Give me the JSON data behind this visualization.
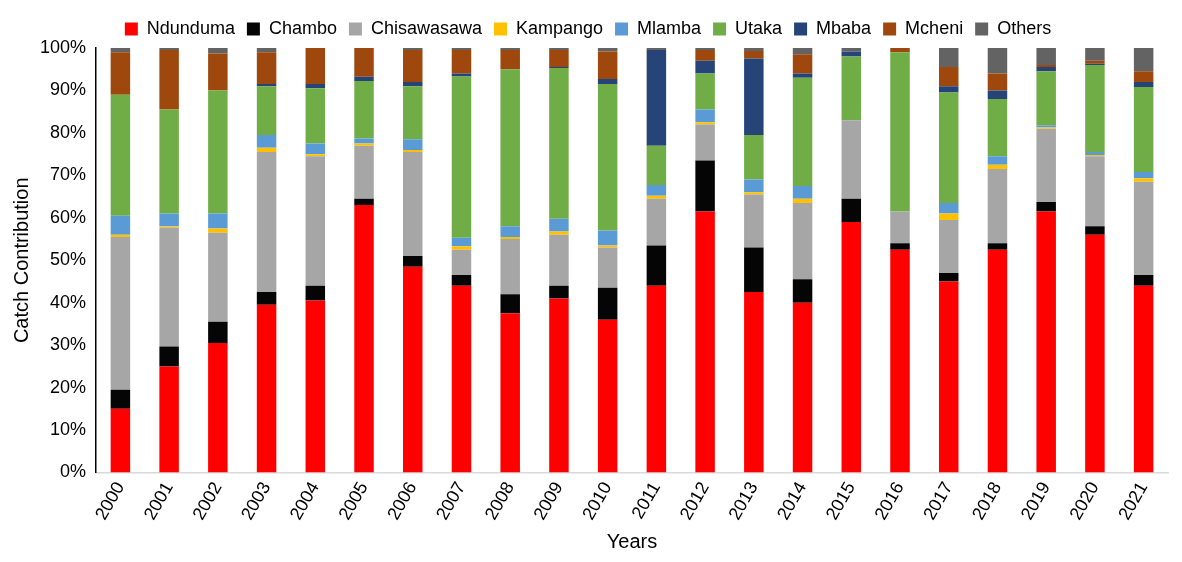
{
  "chart_data": {
    "type": "bar",
    "stacked": true,
    "xlabel": "Years",
    "ylabel": "Catch Contribution",
    "categories": [
      "2000",
      "2001",
      "2002",
      "2003",
      "2004",
      "2005",
      "2006",
      "2007",
      "2008",
      "2009",
      "2010",
      "2011",
      "2012",
      "2013",
      "2014",
      "2015",
      "2016",
      "2017",
      "2018",
      "2019",
      "2020",
      "2021"
    ],
    "ylim": [
      0,
      100
    ],
    "yticks": [
      {
        "value": 0,
        "label": "0%"
      },
      {
        "value": 10,
        "label": "10%"
      },
      {
        "value": 20,
        "label": "20%"
      },
      {
        "value": 30,
        "label": "30%"
      },
      {
        "value": 40,
        "label": "40%"
      },
      {
        "value": 50,
        "label": "50%"
      },
      {
        "value": 60,
        "label": "60%"
      },
      {
        "value": 70,
        "label": "70%"
      },
      {
        "value": 80,
        "label": "80%"
      },
      {
        "value": 90,
        "label": "90%"
      },
      {
        "value": 100,
        "label": "100%"
      }
    ],
    "grid": false,
    "legend": "top",
    "series": [
      {
        "name": "Ndunduma",
        "color": "#ff0000",
        "values": [
          15,
          25,
          30.5,
          39.5,
          40.5,
          63,
          48.5,
          44,
          37.5,
          41,
          36,
          44,
          61.5,
          42.5,
          40,
          59,
          52.5,
          45,
          52.5,
          61.5,
          56,
          44
        ]
      },
      {
        "name": "Chambo",
        "color": "#050505",
        "values": [
          4.5,
          4.7,
          5,
          3,
          3.5,
          1.5,
          2.5,
          2.5,
          4.5,
          3,
          7.5,
          9.5,
          12,
          10.5,
          5.5,
          5.5,
          1.5,
          2,
          1.5,
          2.2,
          2,
          2.5
        ]
      },
      {
        "name": "Chisawasawa",
        "color": "#a6a6a6",
        "values": [
          36,
          28,
          21,
          33,
          30.5,
          12.5,
          24.5,
          6,
          13,
          12,
          9.5,
          11,
          8.5,
          12.5,
          18,
          18.5,
          7.5,
          12.5,
          17.5,
          17.3,
          16.5,
          22
        ]
      },
      {
        "name": "Kampango",
        "color": "#ffc000",
        "values": [
          0.5,
          0.3,
          1,
          1,
          0.5,
          0.5,
          0.5,
          0.8,
          0.5,
          0.8,
          0.5,
          0.7,
          0.5,
          0.5,
          1,
          0,
          0,
          1.5,
          1,
          0.3,
          0.3,
          0.8
        ]
      },
      {
        "name": "Mlamba",
        "color": "#5b9bd5",
        "values": [
          4.5,
          3,
          3.5,
          3,
          2.5,
          1.2,
          2.5,
          2,
          2.5,
          3,
          3.5,
          2.5,
          3,
          3,
          3,
          0,
          0,
          2.5,
          2,
          0.5,
          0.7,
          1.5
        ]
      },
      {
        "name": "Utaka",
        "color": "#70ad47",
        "values": [
          28.5,
          24.5,
          29,
          11.5,
          13,
          13.5,
          12.5,
          38,
          37,
          35.5,
          34.5,
          9.3,
          8.5,
          10.5,
          25.5,
          15,
          37.5,
          26,
          13.5,
          12.7,
          20.5,
          20
        ]
      },
      {
        "name": "Mbaba",
        "color": "#264478",
        "values": [
          0,
          0,
          0,
          0.5,
          1,
          1,
          1,
          0.7,
          0,
          0.2,
          1.2,
          22.5,
          3,
          18,
          1,
          1.2,
          0,
          1.5,
          2,
          1,
          0.3,
          1.2
        ]
      },
      {
        "name": "Mcheni",
        "color": "#9e480e",
        "values": [
          10,
          14,
          8.7,
          7.5,
          8.5,
          6.8,
          7.5,
          5.5,
          4.5,
          4,
          6.5,
          0,
          2.5,
          1.8,
          4.5,
          0,
          1,
          4.5,
          4,
          0.5,
          0.7,
          2.5
        ]
      },
      {
        "name": "Others",
        "color": "#636363",
        "values": [
          1,
          0.5,
          1.3,
          1,
          0,
          0,
          0.5,
          0.5,
          0.5,
          0.5,
          0.8,
          0.5,
          0.5,
          0.7,
          1.5,
          0.8,
          0,
          4.5,
          6,
          4,
          3,
          5.5
        ]
      }
    ]
  }
}
